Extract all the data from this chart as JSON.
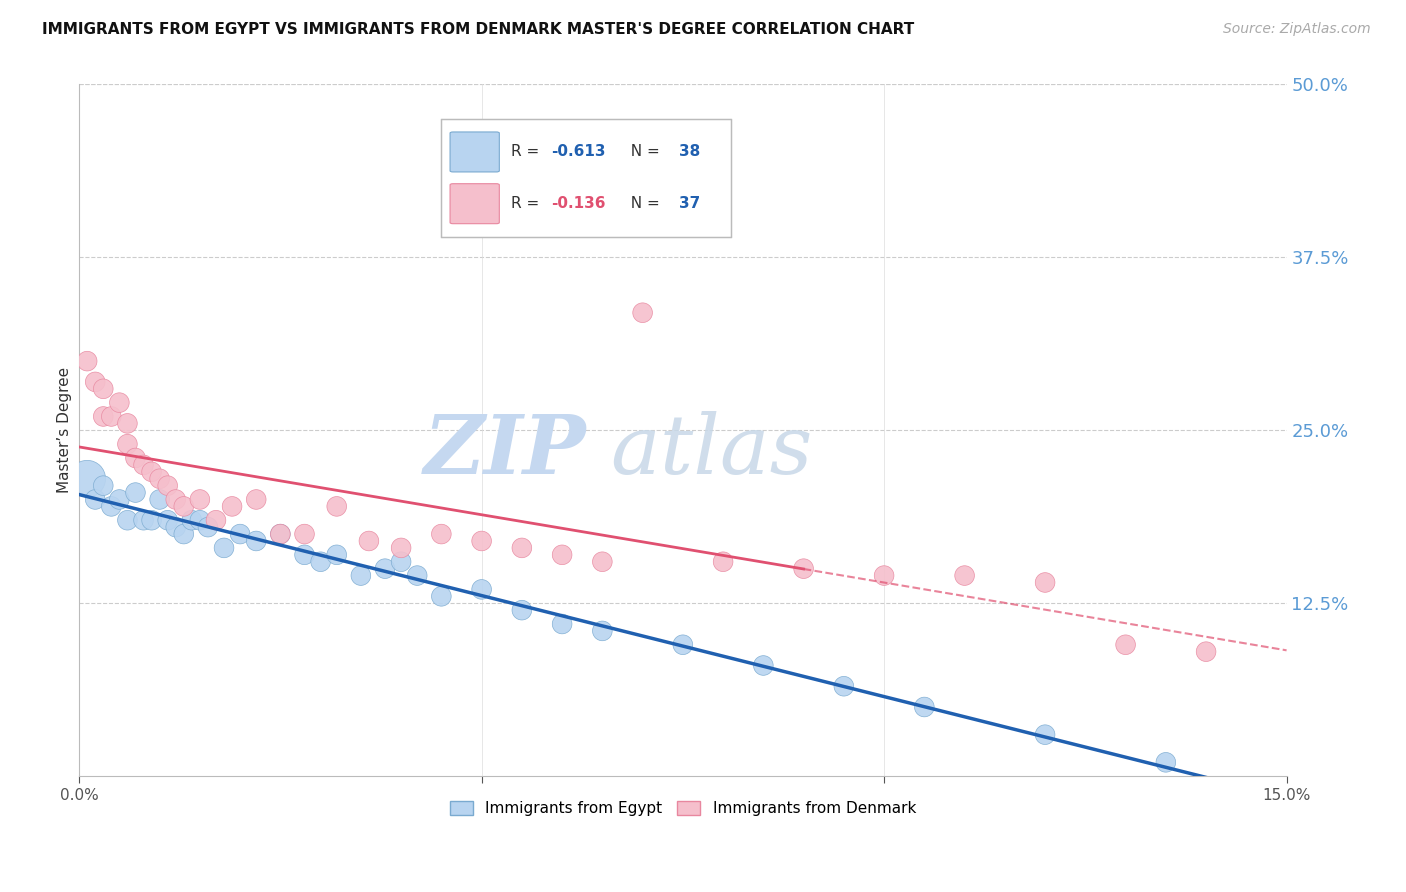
{
  "title": "IMMIGRANTS FROM EGYPT VS IMMIGRANTS FROM DENMARK MASTER'S DEGREE CORRELATION CHART",
  "source": "Source: ZipAtlas.com",
  "ylabel_left": "Master’s Degree",
  "xlim": [
    0.0,
    0.15
  ],
  "ylim": [
    0.0,
    0.5
  ],
  "xtick_vals": [
    0.0,
    0.15
  ],
  "xtick_labels": [
    "0.0%",
    "15.0%"
  ],
  "ytick_right_values": [
    0.125,
    0.25,
    0.375,
    0.5
  ],
  "ytick_right_labels": [
    "12.5%",
    "25.0%",
    "37.5%",
    "50.0%"
  ],
  "watermark_zip": "ZIP",
  "watermark_atlas": "atlas",
  "watermark_color": "#c5d8f0",
  "background_color": "#ffffff",
  "grid_color": "#cccccc",
  "egypt_color": "#b8d4f0",
  "egypt_edge_color": "#7aaad0",
  "denmark_color": "#f5bfcc",
  "denmark_edge_color": "#e8879f",
  "egypt_line_color": "#2060b0",
  "denmark_line_color": "#e05070",
  "right_axis_color": "#5b9bd5",
  "legend_corr_1_label": "R = -0.613   N = 38",
  "legend_corr_2_label": "R = -0.136   N = 37",
  "legend_series_1": "Immigrants from Egypt",
  "legend_series_2": "Immigrants from Denmark",
  "egypt_x": [
    0.001,
    0.002,
    0.003,
    0.004,
    0.005,
    0.006,
    0.007,
    0.008,
    0.009,
    0.01,
    0.011,
    0.012,
    0.013,
    0.014,
    0.015,
    0.016,
    0.018,
    0.02,
    0.022,
    0.025,
    0.028,
    0.03,
    0.032,
    0.035,
    0.038,
    0.04,
    0.042,
    0.045,
    0.05,
    0.055,
    0.06,
    0.065,
    0.075,
    0.085,
    0.095,
    0.105,
    0.12,
    0.135
  ],
  "egypt_y": [
    0.215,
    0.2,
    0.21,
    0.195,
    0.2,
    0.185,
    0.205,
    0.185,
    0.185,
    0.2,
    0.185,
    0.18,
    0.175,
    0.185,
    0.185,
    0.18,
    0.165,
    0.175,
    0.17,
    0.175,
    0.16,
    0.155,
    0.16,
    0.145,
    0.15,
    0.155,
    0.145,
    0.13,
    0.135,
    0.12,
    0.11,
    0.105,
    0.095,
    0.08,
    0.065,
    0.05,
    0.03,
    0.01
  ],
  "egypt_sizes": [
    200,
    200,
    200,
    200,
    200,
    200,
    200,
    200,
    200,
    200,
    200,
    200,
    200,
    200,
    200,
    200,
    200,
    200,
    200,
    200,
    200,
    200,
    200,
    200,
    200,
    200,
    200,
    200,
    200,
    200,
    200,
    200,
    200,
    200,
    200,
    200,
    200,
    200
  ],
  "denmark_x": [
    0.001,
    0.002,
    0.003,
    0.003,
    0.004,
    0.005,
    0.006,
    0.006,
    0.007,
    0.008,
    0.009,
    0.01,
    0.011,
    0.012,
    0.013,
    0.015,
    0.017,
    0.019,
    0.022,
    0.025,
    0.028,
    0.032,
    0.036,
    0.04,
    0.045,
    0.05,
    0.055,
    0.06,
    0.065,
    0.07,
    0.08,
    0.09,
    0.1,
    0.11,
    0.12,
    0.13,
    0.14
  ],
  "denmark_y": [
    0.3,
    0.285,
    0.28,
    0.26,
    0.26,
    0.27,
    0.255,
    0.24,
    0.23,
    0.225,
    0.22,
    0.215,
    0.21,
    0.2,
    0.195,
    0.2,
    0.185,
    0.195,
    0.2,
    0.175,
    0.175,
    0.195,
    0.17,
    0.165,
    0.175,
    0.17,
    0.165,
    0.16,
    0.155,
    0.335,
    0.155,
    0.15,
    0.145,
    0.145,
    0.14,
    0.095,
    0.09
  ],
  "denmark_sizes": [
    200,
    200,
    200,
    200,
    200,
    200,
    200,
    200,
    200,
    200,
    200,
    200,
    200,
    200,
    200,
    200,
    200,
    200,
    200,
    200,
    200,
    200,
    200,
    200,
    200,
    200,
    200,
    200,
    200,
    200,
    200,
    200,
    200,
    200,
    200,
    200,
    200
  ],
  "title_fontsize": 11,
  "axis_label_fontsize": 11,
  "tick_fontsize": 11,
  "legend_fontsize": 11,
  "source_fontsize": 10
}
